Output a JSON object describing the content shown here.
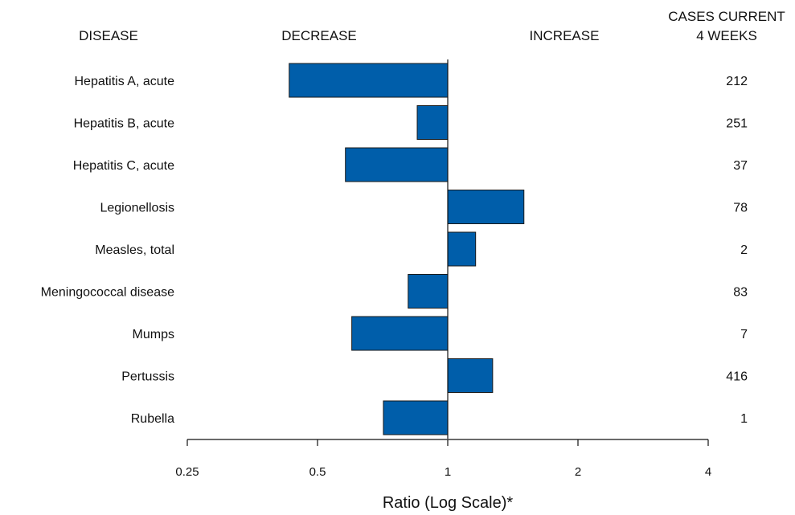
{
  "headers": {
    "disease": "DISEASE",
    "decrease": "DECREASE",
    "increase": "INCREASE",
    "cases_line1": "CASES CURRENT",
    "cases_line2": "4 WEEKS"
  },
  "chart_data": {
    "type": "bar",
    "orientation": "horizontal",
    "scale": "log2",
    "baseline": 1,
    "xlim": [
      0.25,
      4
    ],
    "xticks": [
      0.25,
      0.5,
      1,
      2,
      4
    ],
    "xtick_labels": [
      "0.25",
      "0.5",
      "1",
      "2",
      "4"
    ],
    "xlabel": "Ratio (Log Scale)*",
    "categories": [
      "Hepatitis A, acute",
      "Hepatitis B, acute",
      "Hepatitis C, acute",
      "Legionellosis",
      "Measles, total",
      "Meningococcal disease",
      "Mumps",
      "Pertussis",
      "Rubella"
    ],
    "values": [
      0.43,
      0.85,
      0.58,
      1.5,
      1.16,
      0.81,
      0.6,
      1.27,
      0.71
    ],
    "cases": [
      "212",
      "251",
      "37",
      "78",
      "2",
      "83",
      "7",
      "416",
      "1"
    ],
    "bar_color": "#005EAA",
    "bar_stroke": "#1a1a1a",
    "grid": false
  }
}
